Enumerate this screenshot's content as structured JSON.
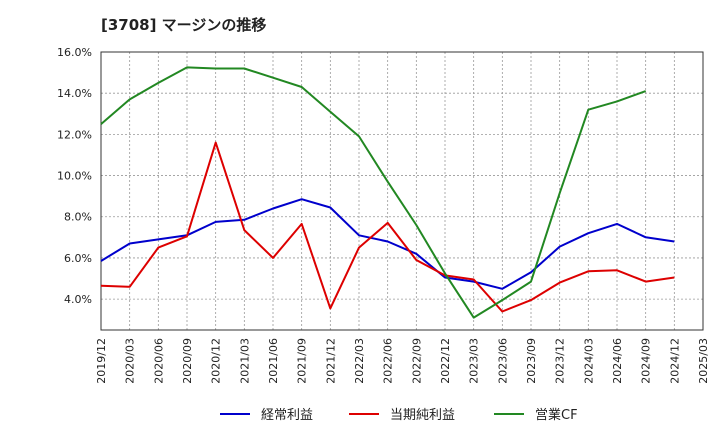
{
  "chart_data": {
    "type": "line",
    "title": "[3708]  マージンの推移",
    "x": [
      "2019/12",
      "2020/03",
      "2020/06",
      "2020/09",
      "2020/12",
      "2021/03",
      "2021/06",
      "2021/09",
      "2021/12",
      "2022/03",
      "2022/06",
      "2022/09",
      "2022/12",
      "2023/03",
      "2023/06",
      "2023/09",
      "2023/12",
      "2024/03",
      "2024/06",
      "2024/09",
      "2024/12",
      "2025/03"
    ],
    "y_ticks": [
      "4.0%",
      "6.0%",
      "8.0%",
      "10.0%",
      "12.0%",
      "14.0%",
      "16.0%"
    ],
    "ylim": [
      2.5,
      16.0
    ],
    "grid": true,
    "legend": "bottom",
    "series": [
      {
        "name": "経常利益",
        "color": "#0000cc",
        "values": [
          5.85,
          6.7,
          6.9,
          7.1,
          7.75,
          7.85,
          8.4,
          8.85,
          8.45,
          7.1,
          6.8,
          6.2,
          5.05,
          4.85,
          4.5,
          5.3,
          6.55,
          7.2,
          7.65,
          7.0,
          6.8,
          null
        ]
      },
      {
        "name": "当期純利益",
        "color": "#dd0000",
        "values": [
          4.65,
          4.6,
          6.5,
          7.05,
          11.6,
          7.35,
          6.0,
          7.65,
          3.55,
          6.5,
          7.7,
          5.9,
          5.15,
          4.95,
          3.4,
          3.95,
          4.8,
          5.35,
          5.4,
          4.85,
          5.05,
          null
        ]
      },
      {
        "name": "営業CF",
        "color": "#228822",
        "values": [
          12.5,
          13.7,
          14.5,
          15.25,
          15.2,
          15.2,
          14.75,
          14.3,
          13.1,
          11.9,
          9.7,
          7.6,
          5.25,
          3.1,
          3.95,
          4.85,
          9.15,
          13.2,
          13.6,
          14.1,
          null,
          null
        ]
      }
    ]
  }
}
